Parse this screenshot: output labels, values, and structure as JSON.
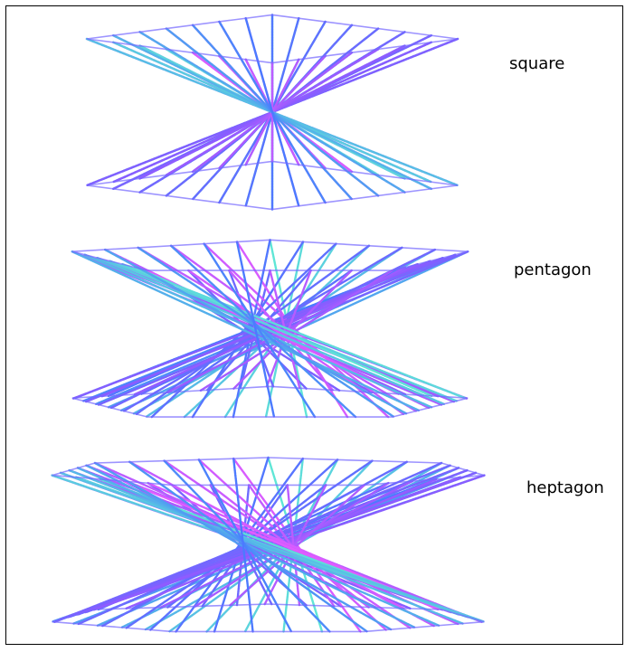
{
  "figures": [
    {
      "id": "square",
      "label": "square",
      "sides": 4
    },
    {
      "id": "pentagon",
      "label": "pentagon",
      "sides": 5
    },
    {
      "id": "heptagon",
      "label": "heptagon",
      "sides": 7
    }
  ],
  "colors": {
    "frame": "#000000",
    "gradient": [
      "#5fe6d6",
      "#4a7bff",
      "#8a5cff",
      "#e05cff"
    ]
  }
}
